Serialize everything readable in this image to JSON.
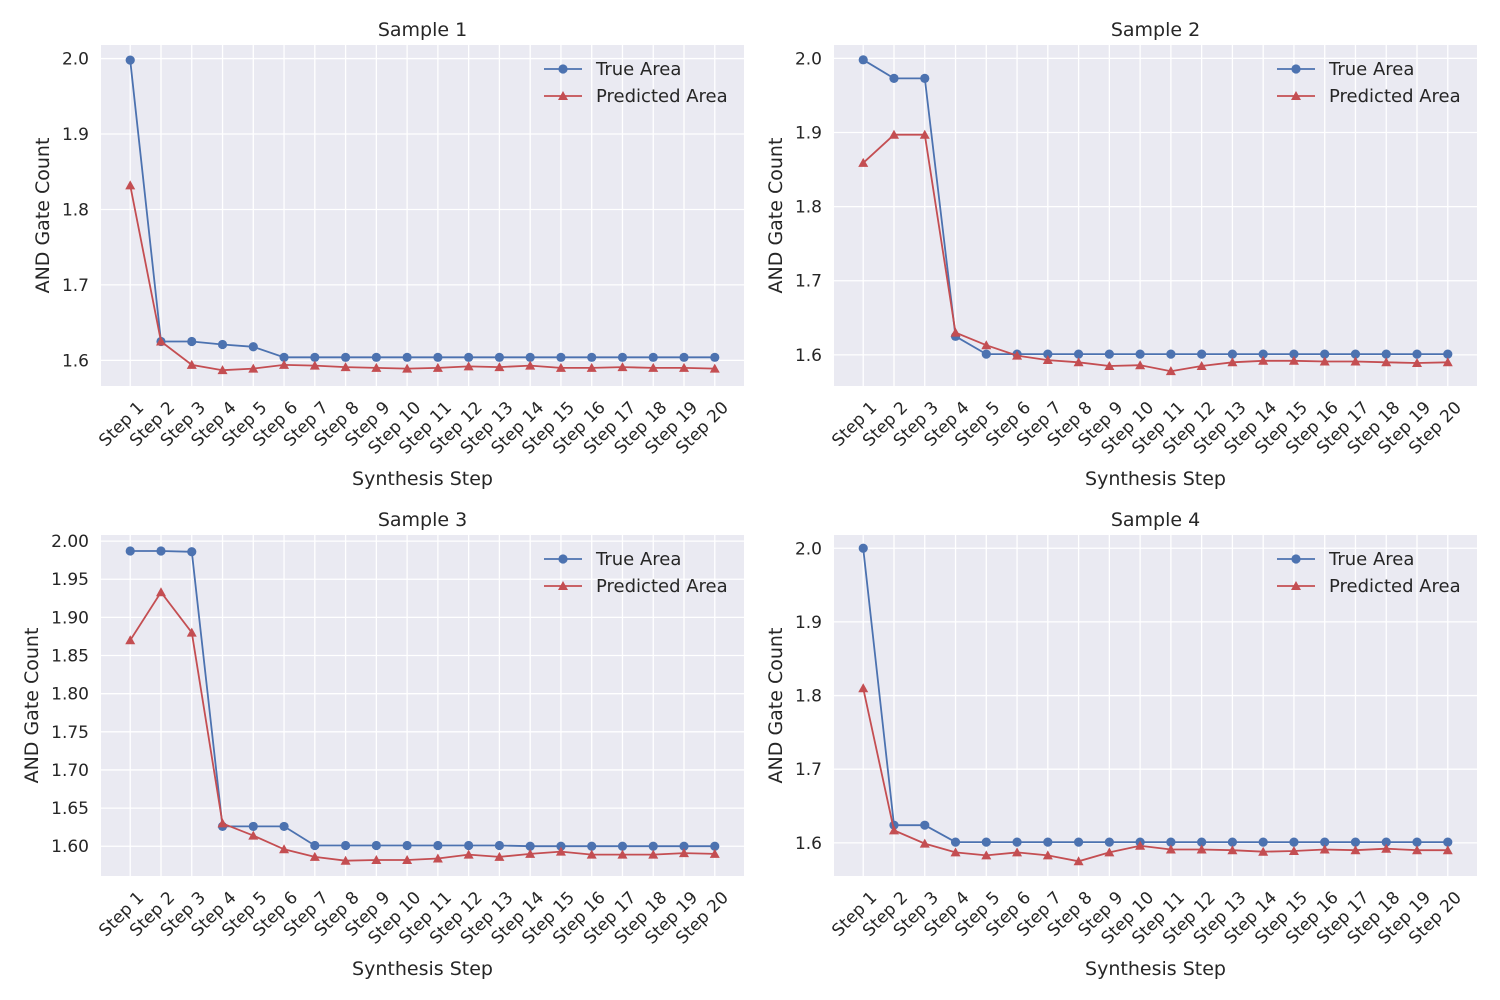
{
  "colors": {
    "true_series": "#4c72b0",
    "pred_series": "#c44e52",
    "plot_bg": "#eaeaf2",
    "grid": "#ffffff"
  },
  "chart_data": [
    {
      "type": "line",
      "title": "Sample 1",
      "xlabel": "Synthesis Step",
      "ylabel": "AND Gate Count",
      "categories": [
        "Step 1",
        "Step 2",
        "Step 3",
        "Step 4",
        "Step 5",
        "Step 6",
        "Step 7",
        "Step 8",
        "Step 9",
        "Step 10",
        "Step 11",
        "Step 12",
        "Step 13",
        "Step 14",
        "Step 15",
        "Step 16",
        "Step 17",
        "Step 18",
        "Step 19",
        "Step 20"
      ],
      "ylim": [
        1.566,
        2.018
      ],
      "yticks": [
        1.6,
        1.7,
        1.8,
        1.9,
        2.0
      ],
      "ytick_labels": [
        "1.6",
        "1.7",
        "1.8",
        "1.9",
        "2.0"
      ],
      "grid": true,
      "legend_position": "top-right",
      "series": [
        {
          "name": "True Area",
          "marker": "circle",
          "values": [
            1.998,
            1.625,
            1.625,
            1.621,
            1.618,
            1.604,
            1.604,
            1.604,
            1.604,
            1.604,
            1.604,
            1.604,
            1.604,
            1.604,
            1.604,
            1.604,
            1.604,
            1.604,
            1.604,
            1.604
          ]
        },
        {
          "name": "Predicted Area",
          "marker": "triangle",
          "values": [
            1.832,
            1.625,
            1.594,
            1.587,
            1.589,
            1.594,
            1.593,
            1.591,
            1.59,
            1.589,
            1.59,
            1.592,
            1.591,
            1.593,
            1.59,
            1.59,
            1.591,
            1.59,
            1.59,
            1.589
          ]
        }
      ]
    },
    {
      "type": "line",
      "title": "Sample 2",
      "xlabel": "Synthesis Step",
      "ylabel": "AND Gate Count",
      "categories": [
        "Step 1",
        "Step 2",
        "Step 3",
        "Step 4",
        "Step 5",
        "Step 6",
        "Step 7",
        "Step 8",
        "Step 9",
        "Step 10",
        "Step 11",
        "Step 12",
        "Step 13",
        "Step 14",
        "Step 15",
        "Step 16",
        "Step 17",
        "Step 18",
        "Step 19",
        "Step 20"
      ],
      "ylim": [
        1.558,
        2.018
      ],
      "yticks": [
        1.6,
        1.7,
        1.8,
        1.9,
        2.0
      ],
      "ytick_labels": [
        "1.6",
        "1.7",
        "1.8",
        "1.9",
        "2.0"
      ],
      "grid": true,
      "legend_position": "top-right",
      "series": [
        {
          "name": "True Area",
          "marker": "circle",
          "values": [
            1.998,
            1.973,
            1.973,
            1.625,
            1.601,
            1.601,
            1.601,
            1.601,
            1.601,
            1.601,
            1.601,
            1.601,
            1.601,
            1.601,
            1.601,
            1.601,
            1.601,
            1.601,
            1.601,
            1.601
          ]
        },
        {
          "name": "Predicted Area",
          "marker": "triangle",
          "values": [
            1.859,
            1.897,
            1.897,
            1.63,
            1.613,
            1.599,
            1.593,
            1.59,
            1.585,
            1.586,
            1.578,
            1.585,
            1.59,
            1.592,
            1.592,
            1.591,
            1.591,
            1.59,
            1.589,
            1.59
          ]
        }
      ]
    },
    {
      "type": "line",
      "title": "Sample 3",
      "xlabel": "Synthesis Step",
      "ylabel": "AND Gate Count",
      "categories": [
        "Step 1",
        "Step 2",
        "Step 3",
        "Step 4",
        "Step 5",
        "Step 6",
        "Step 7",
        "Step 8",
        "Step 9",
        "Step 10",
        "Step 11",
        "Step 12",
        "Step 13",
        "Step 14",
        "Step 15",
        "Step 16",
        "Step 17",
        "Step 18",
        "Step 19",
        "Step 20"
      ],
      "ylim": [
        1.561,
        2.008
      ],
      "yticks": [
        1.6,
        1.65,
        1.7,
        1.75,
        1.8,
        1.85,
        1.9,
        1.95,
        2.0
      ],
      "ytick_labels": [
        "1.60",
        "1.65",
        "1.70",
        "1.75",
        "1.80",
        "1.85",
        "1.90",
        "1.95",
        "2.00"
      ],
      "grid": true,
      "legend_position": "top-right",
      "series": [
        {
          "name": "True Area",
          "marker": "circle",
          "values": [
            1.987,
            1.987,
            1.986,
            1.626,
            1.626,
            1.626,
            1.601,
            1.601,
            1.601,
            1.601,
            1.601,
            1.601,
            1.601,
            1.6,
            1.6,
            1.6,
            1.6,
            1.6,
            1.6,
            1.6
          ]
        },
        {
          "name": "Predicted Area",
          "marker": "triangle",
          "values": [
            1.87,
            1.933,
            1.88,
            1.63,
            1.614,
            1.596,
            1.586,
            1.581,
            1.582,
            1.582,
            1.584,
            1.589,
            1.586,
            1.59,
            1.593,
            1.589,
            1.589,
            1.589,
            1.591,
            1.59
          ]
        }
      ]
    },
    {
      "type": "line",
      "title": "Sample 4",
      "xlabel": "Synthesis Step",
      "ylabel": "AND Gate Count",
      "categories": [
        "Step 1",
        "Step 2",
        "Step 3",
        "Step 4",
        "Step 5",
        "Step 6",
        "Step 7",
        "Step 8",
        "Step 9",
        "Step 10",
        "Step 11",
        "Step 12",
        "Step 13",
        "Step 14",
        "Step 15",
        "Step 16",
        "Step 17",
        "Step 18",
        "Step 19",
        "Step 20"
      ],
      "ylim": [
        1.555,
        2.018
      ],
      "yticks": [
        1.6,
        1.7,
        1.8,
        1.9,
        2.0
      ],
      "ytick_labels": [
        "1.6",
        "1.7",
        "1.8",
        "1.9",
        "2.0"
      ],
      "grid": true,
      "legend_position": "top-right",
      "series": [
        {
          "name": "True Area",
          "marker": "circle",
          "values": [
            2.0,
            1.624,
            1.624,
            1.601,
            1.601,
            1.601,
            1.601,
            1.601,
            1.601,
            1.601,
            1.601,
            1.601,
            1.601,
            1.601,
            1.601,
            1.601,
            1.601,
            1.601,
            1.601,
            1.601
          ]
        },
        {
          "name": "Predicted Area",
          "marker": "triangle",
          "values": [
            1.81,
            1.617,
            1.599,
            1.587,
            1.583,
            1.587,
            1.583,
            1.575,
            1.587,
            1.596,
            1.591,
            1.591,
            1.59,
            1.588,
            1.589,
            1.591,
            1.59,
            1.592,
            1.59,
            1.59
          ]
        }
      ]
    }
  ]
}
